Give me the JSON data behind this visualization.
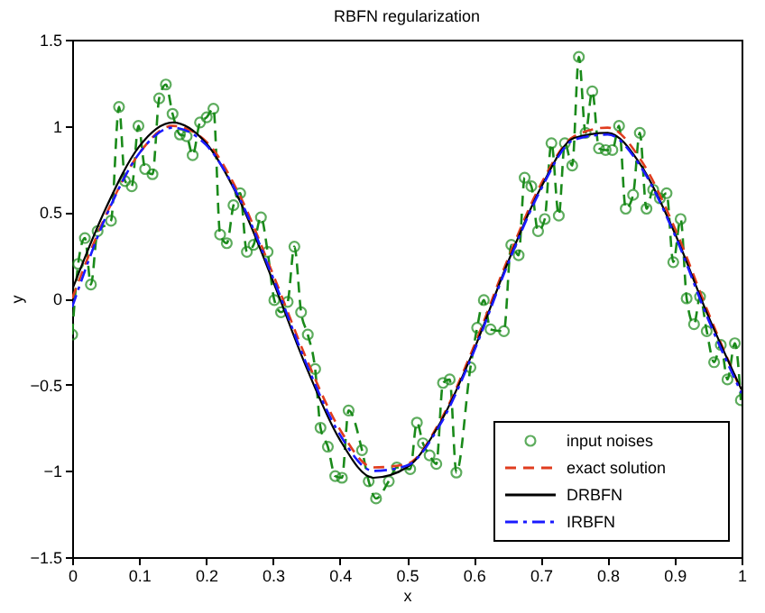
{
  "chart_data": {
    "type": "line",
    "title": "RBFN regularization",
    "xlabel": "x",
    "ylabel": "y",
    "xlim": [
      0,
      1
    ],
    "xticks": [
      0,
      0.1,
      0.2,
      0.3,
      0.4,
      0.5,
      0.6,
      0.7,
      0.8,
      0.9,
      1
    ],
    "ylim": [
      -1.5,
      1.5
    ],
    "yticks": [
      -1.5,
      -1,
      -0.5,
      0,
      0.5,
      1,
      1.5
    ],
    "grid": false,
    "legend": "bottom right",
    "series": [
      {
        "name": "input noises",
        "color": "#1a8a1a",
        "marker": "circle",
        "line_style": "dashed",
        "x": [
          0,
          0.009,
          0.019,
          0.028,
          0.038,
          0.058,
          0.07,
          0.079,
          0.089,
          0.099,
          0.109,
          0.12,
          0.13,
          0.14,
          0.15,
          0.161,
          0.171,
          0.18,
          0.191,
          0.201,
          0.211,
          0.221,
          0.231,
          0.241,
          0.251,
          0.261,
          0.271,
          0.282,
          0.292,
          0.302,
          0.312,
          0.322,
          0.332,
          0.342,
          0.352,
          0.363,
          0.371,
          0.382,
          0.393,
          0.403,
          0.413,
          0.433,
          0.443,
          0.454,
          0.473,
          0.485,
          0.505,
          0.515,
          0.524,
          0.534,
          0.544,
          0.554,
          0.564,
          0.574,
          0.595,
          0.605,
          0.615,
          0.625,
          0.645,
          0.656,
          0.667,
          0.676,
          0.686,
          0.696,
          0.706,
          0.716,
          0.727,
          0.736,
          0.747,
          0.757,
          0.767,
          0.777,
          0.787,
          0.797,
          0.807,
          0.817,
          0.827,
          0.838,
          0.848,
          0.858,
          0.868,
          0.878,
          0.888,
          0.898,
          0.909,
          0.918,
          0.929,
          0.938,
          0.948,
          0.959,
          0.969,
          0.979,
          0.99,
          0.999
        ],
        "values": [
          -0.21,
          0.2,
          0.35,
          0.08,
          0.39,
          0.45,
          1.11,
          0.68,
          0.65,
          1.0,
          0.75,
          0.72,
          1.16,
          1.24,
          1.07,
          0.95,
          0.94,
          0.83,
          1.02,
          1.05,
          1.1,
          0.37,
          0.32,
          0.54,
          0.61,
          0.27,
          0.31,
          0.47,
          0.27,
          -0.01,
          -0.08,
          -0.02,
          0.3,
          -0.08,
          -0.21,
          -0.41,
          -0.75,
          -0.86,
          -1.03,
          -1.04,
          -0.65,
          -0.88,
          -1.06,
          -1.16,
          -1.06,
          -0.98,
          -0.99,
          -0.72,
          -0.84,
          -0.91,
          -0.96,
          -0.49,
          -0.47,
          -1.01,
          -0.4,
          -0.17,
          -0.01,
          -0.18,
          -0.19,
          0.31,
          0.25,
          0.7,
          0.65,
          0.39,
          0.46,
          0.9,
          0.48,
          0.9,
          0.77,
          1.4,
          0.96,
          1.2,
          0.87,
          0.86,
          0.86,
          1.0,
          0.52,
          0.6,
          0.96,
          0.52,
          0.63,
          0.58,
          0.61,
          0.21,
          0.46,
          0.0,
          -0.15,
          0.01,
          -0.19,
          -0.37,
          -0.27,
          -0.47,
          -0.26,
          -0.59
        ]
      },
      {
        "name": "exact solution",
        "color": "#e03c1e",
        "line_style": "dashed",
        "x": [
          0,
          0.05,
          0.1,
          0.15,
          0.2,
          0.25,
          0.3,
          0.35,
          0.4,
          0.45,
          0.5,
          0.55,
          0.6,
          0.65,
          0.7,
          0.75,
          0.8,
          0.85,
          0.9,
          0.95,
          1
        ],
        "values": [
          0,
          0.48,
          0.84,
          1.0,
          0.91,
          0.6,
          0.14,
          -0.35,
          -0.76,
          -0.98,
          -0.96,
          -0.71,
          -0.28,
          0.22,
          0.66,
          0.94,
          0.99,
          0.8,
          0.41,
          -0.08,
          -0.54
        ]
      },
      {
        "name": "DRBFN",
        "color": "#000000",
        "line_style": "solid",
        "x": [
          0,
          0.05,
          0.1,
          0.15,
          0.2,
          0.25,
          0.3,
          0.35,
          0.4,
          0.45,
          0.5,
          0.55,
          0.6,
          0.65,
          0.7,
          0.75,
          0.8,
          0.85,
          0.9,
          0.95,
          1
        ],
        "values": [
          0.05,
          0.52,
          0.88,
          1.02,
          0.9,
          0.57,
          0.1,
          -0.4,
          -0.82,
          -1.04,
          -0.98,
          -0.72,
          -0.3,
          0.2,
          0.64,
          0.93,
          0.96,
          0.77,
          0.38,
          -0.1,
          -0.53
        ]
      },
      {
        "name": "IRBFN",
        "color": "#1a1aff",
        "line_style": "dashdot",
        "x": [
          0,
          0.05,
          0.1,
          0.15,
          0.2,
          0.25,
          0.3,
          0.35,
          0.4,
          0.45,
          0.5,
          0.55,
          0.6,
          0.65,
          0.7,
          0.75,
          0.8,
          0.85,
          0.9,
          0.95,
          1
        ],
        "values": [
          -0.05,
          0.47,
          0.84,
          0.99,
          0.89,
          0.58,
          0.12,
          -0.38,
          -0.79,
          -1.0,
          -0.97,
          -0.73,
          -0.31,
          0.19,
          0.63,
          0.92,
          0.95,
          0.76,
          0.37,
          -0.12,
          -0.55
        ]
      }
    ]
  }
}
